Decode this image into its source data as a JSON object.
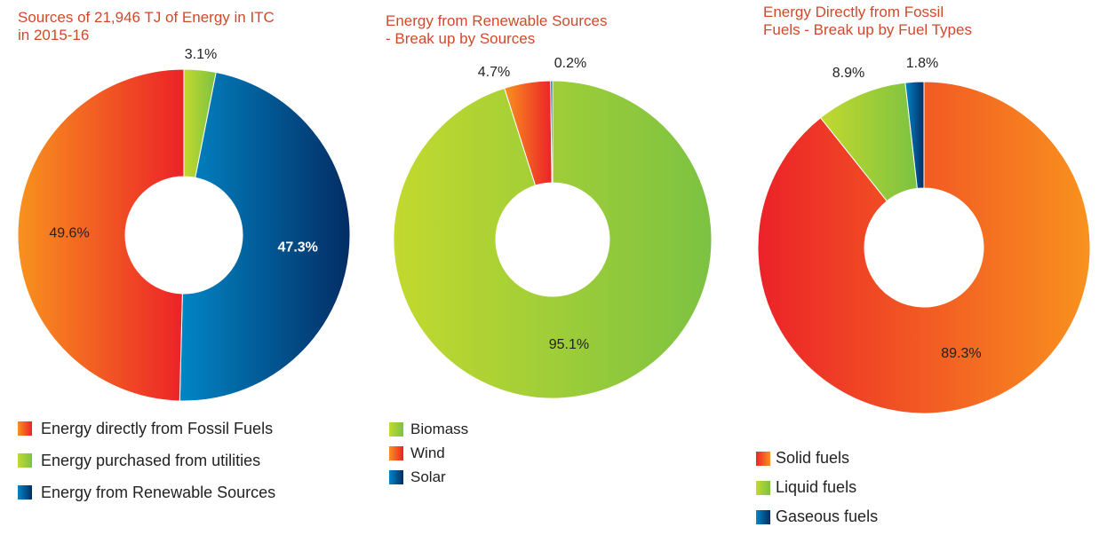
{
  "chart_data": [
    {
      "type": "pie",
      "title": "Sources of 21,946 TJ of Energy in ITC\nin 2015-16",
      "categories": [
        "Energy purchased from utilities",
        "Energy from Renewable Sources",
        "Energy directly from Fossil Fuels"
      ],
      "values": [
        3.1,
        47.3,
        49.6
      ],
      "labels": [
        "3.1%",
        "47.3%",
        "49.6%"
      ],
      "colors": [
        [
          "#c2d92e",
          "#7cc242"
        ],
        [
          "#0286c6",
          "#032d64"
        ],
        [
          "#f8921e",
          "#ec2228"
        ]
      ],
      "legend_order": [
        2,
        0,
        1
      ],
      "legend_position": "bottom"
    },
    {
      "type": "pie",
      "title": "Energy from Renewable Sources\n- Break up by Sources",
      "categories": [
        "Biomass",
        "Wind",
        "Solar"
      ],
      "values": [
        95.1,
        4.7,
        0.2
      ],
      "labels": [
        "95.1%",
        "4.7%",
        "0.2%"
      ],
      "colors": [
        [
          "#c2d92e",
          "#7cc242"
        ],
        [
          "#f8921e",
          "#ec2228"
        ],
        [
          "#0286c6",
          "#032d64"
        ]
      ],
      "legend_order": [
        0,
        1,
        2
      ],
      "legend_position": "bottom"
    },
    {
      "type": "pie",
      "title": "Energy Directly from Fossil\nFuels - Break up by Fuel Types",
      "categories": [
        "Solid fuels",
        "Liquid fuels",
        "Gaseous fuels"
      ],
      "values": [
        89.3,
        8.9,
        1.8
      ],
      "labels": [
        "89.3%",
        "8.9%",
        "1.8%"
      ],
      "colors": [
        [
          "#ec2228",
          "#f8921e"
        ],
        [
          "#c2d92e",
          "#7cc242"
        ],
        [
          "#0286c6",
          "#032d64"
        ]
      ],
      "legend_order": [
        0,
        1,
        2
      ],
      "legend_position": "bottom"
    }
  ]
}
